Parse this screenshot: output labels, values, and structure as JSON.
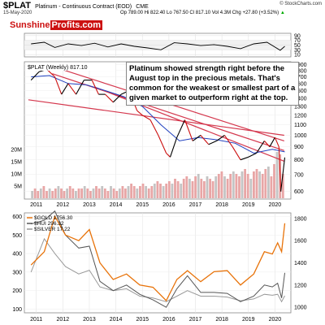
{
  "header": {
    "symbol": "$PLAT",
    "description": "Platinum - Continuous Contract (EOD)",
    "exchange": "CME",
    "date": "15-May-2020",
    "ohlc": "Op 789.00  Hi 822.40  Lo 767.50  Cl 817.10  Vol 4.3M  Chg +27.80 (+3.52%)",
    "chg_arrow": "▲",
    "site": "© StockCharts.com"
  },
  "logo": {
    "part1": "Sunshine",
    "part2": "Profits.com"
  },
  "annotation": "Platinum showed strength right before the August top in the precious metals. That's common for the weakest or smallest part of a given market to outperform right at the top.",
  "colors": {
    "price": "#000000",
    "price_down": "#cc1111",
    "ma": "#1f3fbf",
    "trendline": "#d4374d",
    "volume": "#e8a6a6",
    "gold": "#e8730a",
    "hui": "#555555",
    "silver": "#999999",
    "logo_red": "#cc1111"
  },
  "chart_data": [
    {
      "type": "line",
      "name": "RSI",
      "y_ticks": [
        90,
        70,
        50,
        30,
        10
      ],
      "ylim": [
        0,
        100
      ],
      "x": [
        2010.8,
        2011.3,
        2011.7,
        2012.2,
        2012.7,
        2013.2,
        2013.7,
        2014.2,
        2014.7,
        2015.2,
        2015.7,
        2016.2,
        2016.7,
        2017.2,
        2017.7,
        2018.2,
        2018.7,
        2019.2,
        2019.7,
        2020.2,
        2020.37
      ],
      "values": [
        55,
        62,
        40,
        55,
        48,
        58,
        42,
        55,
        45,
        38,
        30,
        60,
        55,
        48,
        52,
        45,
        35,
        55,
        62,
        28,
        45
      ]
    },
    {
      "type": "line",
      "title": "$PLAT (Weekly) 817.10",
      "y_ticks": [
        1900,
        1800,
        1700,
        1600,
        1500,
        1400,
        1300,
        1200,
        1100,
        1000,
        900,
        800,
        700,
        600
      ],
      "ylim": [
        560,
        1950
      ],
      "log_scale": true,
      "x_ticks": [
        "2011",
        "2012",
        "2013",
        "2014",
        "2015",
        "2016",
        "2017",
        "2018",
        "2019",
        "2020"
      ],
      "series": [
        {
          "role": "price",
          "x": [
            2010.8,
            2011.1,
            2011.4,
            2011.7,
            2011.95,
            2012.2,
            2012.5,
            2012.8,
            2013.1,
            2013.35,
            2013.6,
            2013.9,
            2014.2,
            2014.5,
            2014.8,
            2015.0,
            2015.3,
            2015.6,
            2015.9,
            2016.05,
            2016.3,
            2016.6,
            2016.9,
            2017.2,
            2017.5,
            2017.8,
            2018.1,
            2018.4,
            2018.7,
            2019.0,
            2019.3,
            2019.6,
            2019.8,
            2020.0,
            2020.15,
            2020.22,
            2020.37
          ],
          "values": [
            1650,
            1780,
            1820,
            1700,
            1450,
            1600,
            1450,
            1650,
            1650,
            1450,
            1450,
            1350,
            1450,
            1500,
            1250,
            1200,
            1150,
            1000,
            850,
            820,
            980,
            1150,
            950,
            1000,
            920,
            950,
            1000,
            900,
            800,
            820,
            850,
            950,
            900,
            980,
            900,
            600,
            817
          ]
        },
        {
          "role": "moving-average",
          "x": [
            2010.8,
            2011.5,
            2012.2,
            2012.9,
            2013.6,
            2014.3,
            2015.0,
            2015.7,
            2016.4,
            2017.1,
            2017.8,
            2018.5,
            2019.2,
            2019.9,
            2020.37
          ],
          "values": [
            1700,
            1720,
            1600,
            1580,
            1500,
            1420,
            1300,
            1100,
            950,
            980,
            960,
            930,
            850,
            880,
            860
          ]
        },
        {
          "role": "trendline",
          "x": [
            2011.6,
            2020.35
          ],
          "values": [
            1870,
            950
          ]
        },
        {
          "role": "trendline",
          "x": [
            2011.6,
            2020.35
          ],
          "values": [
            1750,
            870
          ]
        },
        {
          "role": "trendline",
          "x": [
            2010.7,
            2020.35
          ],
          "values": [
            1380,
            1000
          ]
        },
        {
          "role": "trendline",
          "x": [
            2013.2,
            2020.35
          ],
          "values": [
            1550,
            790
          ]
        }
      ]
    },
    {
      "type": "bar",
      "name": "Volume",
      "y_ticks": [
        "20M",
        "15M",
        "10M",
        "5M"
      ],
      "ylim": [
        0,
        22
      ],
      "x_range": [
        2010.8,
        2020.37
      ],
      "bar_heights": [
        3,
        4,
        3,
        4,
        5,
        3,
        4,
        3,
        4,
        5,
        4,
        3,
        4,
        5,
        4,
        3,
        4,
        4,
        5,
        4,
        3,
        4,
        5,
        4,
        5,
        4,
        3,
        5,
        4,
        3,
        4,
        5,
        4,
        5,
        6,
        5,
        4,
        5,
        6,
        5,
        4,
        5,
        6,
        7,
        6,
        5,
        6,
        7,
        6,
        8,
        7,
        6,
        8,
        9,
        8,
        7,
        9,
        10,
        8,
        7,
        9,
        8,
        7,
        9,
        10,
        11,
        9,
        8,
        10,
        11,
        10,
        9,
        11,
        12,
        10,
        8,
        11,
        12,
        11,
        10,
        12,
        13,
        9,
        14,
        19,
        18,
        10
      ],
      "value_unit": "M"
    },
    {
      "type": "line",
      "y_ticks_left": [
        600,
        500,
        400,
        300,
        200,
        100
      ],
      "ylim_left": [
        80,
        620
      ],
      "y_ticks_right": [
        1800,
        1600,
        1400,
        1200,
        1000
      ],
      "ylim_right": [
        950,
        1850
      ],
      "x_ticks": [
        "2011",
        "2012",
        "2013",
        "2014",
        "2015",
        "2016",
        "2017",
        "2018",
        "2019",
        "2020"
      ],
      "series": [
        {
          "name": "$GOLD 1756.30",
          "axis": "right",
          "x": [
            2010.8,
            2011.3,
            2011.7,
            2012.1,
            2012.6,
            2013.0,
            2013.4,
            2013.9,
            2014.4,
            2014.9,
            2015.4,
            2015.9,
            2016.3,
            2016.7,
            2017.2,
            2017.7,
            2018.2,
            2018.7,
            2019.2,
            2019.6,
            2019.9,
            2020.1,
            2020.25,
            2020.37
          ],
          "values": [
            1380,
            1500,
            1820,
            1650,
            1600,
            1700,
            1400,
            1250,
            1300,
            1200,
            1180,
            1060,
            1250,
            1330,
            1230,
            1320,
            1330,
            1200,
            1300,
            1500,
            1480,
            1580,
            1500,
            1756
          ]
        },
        {
          "name": "$HUI 296.32",
          "axis": "left",
          "x": [
            2010.8,
            2011.3,
            2011.7,
            2012.1,
            2012.6,
            2013.0,
            2013.4,
            2013.9,
            2014.4,
            2014.9,
            2015.4,
            2015.9,
            2016.3,
            2016.7,
            2017.2,
            2017.7,
            2018.2,
            2018.7,
            2019.2,
            2019.6,
            2019.9,
            2020.1,
            2020.25,
            2020.37
          ],
          "values": [
            560,
            580,
            630,
            500,
            430,
            440,
            250,
            200,
            230,
            180,
            150,
            110,
            210,
            280,
            190,
            190,
            185,
            140,
            170,
            230,
            220,
            240,
            160,
            296
          ]
        },
        {
          "name": "$SILVER 17.22",
          "axis": "left",
          "x": [
            2010.8,
            2011.3,
            2011.7,
            2012.1,
            2012.6,
            2013.0,
            2013.4,
            2013.9,
            2014.4,
            2014.9,
            2015.4,
            2015.9,
            2016.3,
            2016.7,
            2017.2,
            2017.7,
            2018.2,
            2018.7,
            2019.2,
            2019.6,
            2019.9,
            2020.1,
            2020.25,
            2020.37
          ],
          "values": [
            300,
            480,
            400,
            330,
            290,
            310,
            220,
            200,
            210,
            170,
            160,
            140,
            170,
            200,
            170,
            170,
            165,
            145,
            155,
            180,
            175,
            180,
            140,
            172
          ]
        }
      ]
    }
  ]
}
